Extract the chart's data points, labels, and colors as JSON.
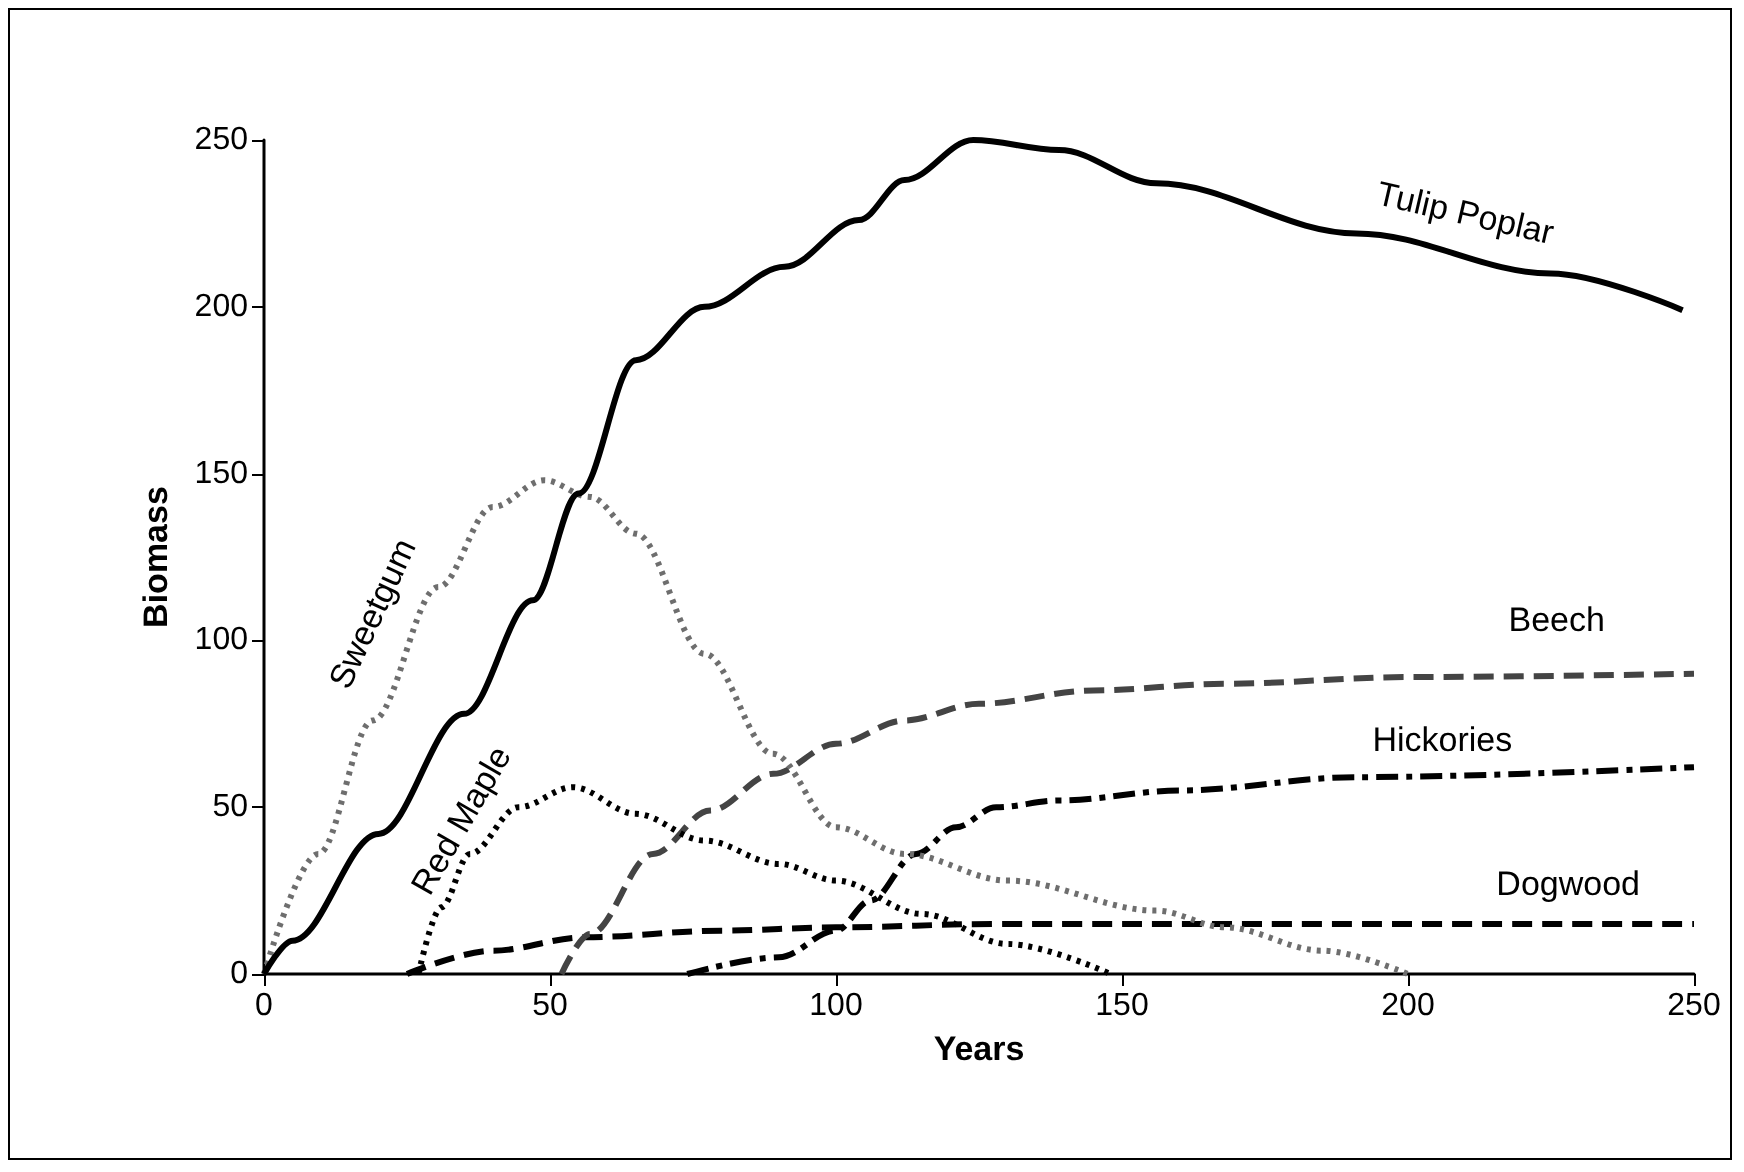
{
  "chart_data": {
    "type": "line",
    "xlabel": "Years",
    "ylabel": "Biomass",
    "xlim": [
      0,
      250
    ],
    "xticks": [
      0,
      50,
      100,
      150,
      200,
      250
    ],
    "ylim": [
      0,
      250
    ],
    "yticks": [
      0,
      50,
      100,
      150,
      200,
      250
    ],
    "grid": false,
    "legend": false,
    "marker": "none",
    "series": [
      {
        "name": "Tulip Poplar",
        "color": "#000000",
        "line_style": "solid",
        "x": [
          0,
          5,
          20,
          35,
          47,
          55,
          65,
          77,
          91,
          104,
          112,
          124,
          139,
          156,
          191,
          225,
          248
        ],
        "values": [
          0,
          10,
          42,
          78,
          112,
          144,
          184,
          200,
          212,
          226,
          238,
          250,
          247,
          237,
          222,
          210,
          199
        ]
      },
      {
        "name": "Sweetgum",
        "color": "#6e6e6e",
        "line_style": "dotted",
        "x": [
          0,
          9.5,
          19,
          30.5,
          40,
          49,
          57,
          65,
          77,
          89,
          100,
          112,
          130,
          156,
          168,
          185,
          200
        ],
        "values": [
          0,
          36,
          76,
          116,
          140,
          148,
          143,
          132,
          96,
          66,
          44,
          36,
          28,
          19,
          14,
          7,
          0
        ]
      },
      {
        "name": "Red Maple",
        "color": "#000000",
        "line_style": "dotted",
        "x": [
          27,
          31,
          36,
          44.5,
          54,
          65,
          77,
          90,
          100,
          115,
          130,
          148
        ],
        "values": [
          0,
          20,
          36,
          50,
          56,
          48,
          40,
          33,
          28,
          18,
          9,
          0
        ]
      },
      {
        "name": "Beech",
        "color": "#444444",
        "line_style": "dashed",
        "x": [
          52,
          57,
          68,
          78,
          89,
          100,
          112,
          125,
          145,
          168,
          200,
          250
        ],
        "values": [
          0,
          12,
          36,
          49,
          60,
          69,
          76,
          81,
          85,
          87,
          89,
          90
        ]
      },
      {
        "name": "Hickories",
        "color": "#000000",
        "line_style": "dashdot",
        "x": [
          74,
          90,
          100,
          106,
          114,
          121,
          128,
          139,
          160,
          191,
          250
        ],
        "values": [
          0,
          5,
          13,
          22,
          36,
          44,
          50,
          52,
          55,
          59,
          62
        ]
      },
      {
        "name": "Dogwood",
        "color": "#000000",
        "line_style": "dashed",
        "x": [
          25,
          40,
          56,
          80,
          100,
          128,
          175,
          250
        ],
        "values": [
          0,
          7,
          11,
          13,
          14,
          15,
          15,
          15
        ]
      }
    ]
  }
}
